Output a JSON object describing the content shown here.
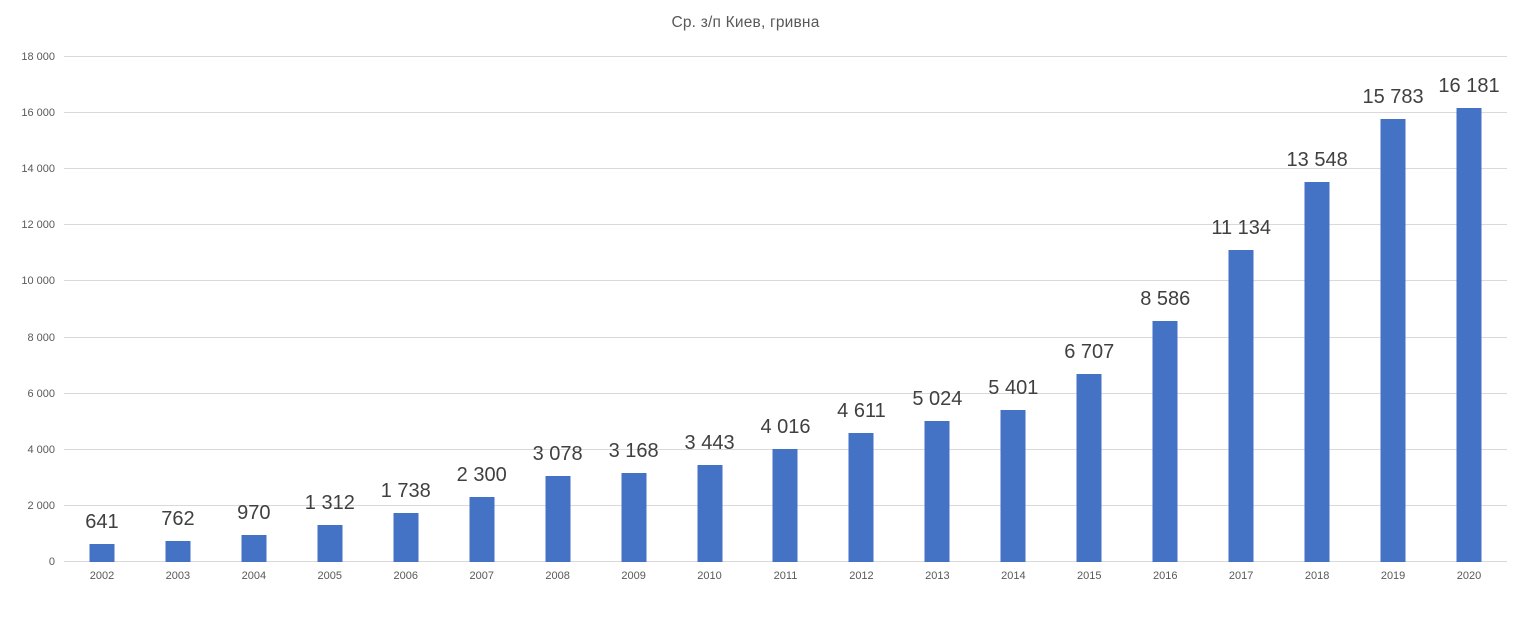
{
  "chart_data": {
    "type": "bar",
    "title": "Ср. з/п Киев, гривна",
    "xlabel": "",
    "ylabel": "",
    "categories": [
      "2002",
      "2003",
      "2004",
      "2005",
      "2006",
      "2007",
      "2008",
      "2009",
      "2010",
      "2011",
      "2012",
      "2013",
      "2014",
      "2015",
      "2016",
      "2017",
      "2018",
      "2019",
      "2020"
    ],
    "values": [
      641,
      762,
      970,
      1312,
      1738,
      2300,
      3078,
      3168,
      3443,
      4016,
      4611,
      5024,
      5401,
      6707,
      8586,
      11134,
      13548,
      15783,
      16181
    ],
    "data_labels": [
      "641",
      "762",
      "970",
      "1 312",
      "1 738",
      "2 300",
      "3 078",
      "3 168",
      "3 443",
      "4 016",
      "4 611",
      "5 024",
      "5 401",
      "6 707",
      "8 586",
      "11 134",
      "13 548",
      "15 783",
      "16 181"
    ],
    "ylim": [
      0,
      18000
    ],
    "ytick_step": 2000,
    "ytick_labels": [
      "0",
      "2 000",
      "4 000",
      "6 000",
      "8 000",
      "10 000",
      "12 000",
      "14 000",
      "16 000",
      "18 000"
    ],
    "grid": true,
    "legend": "none",
    "colors": {
      "bar": "#4472C4",
      "gridline": "#D9D9D9",
      "axis_tick_label": "#595959",
      "data_label": "#404040",
      "title": "#595959"
    }
  }
}
